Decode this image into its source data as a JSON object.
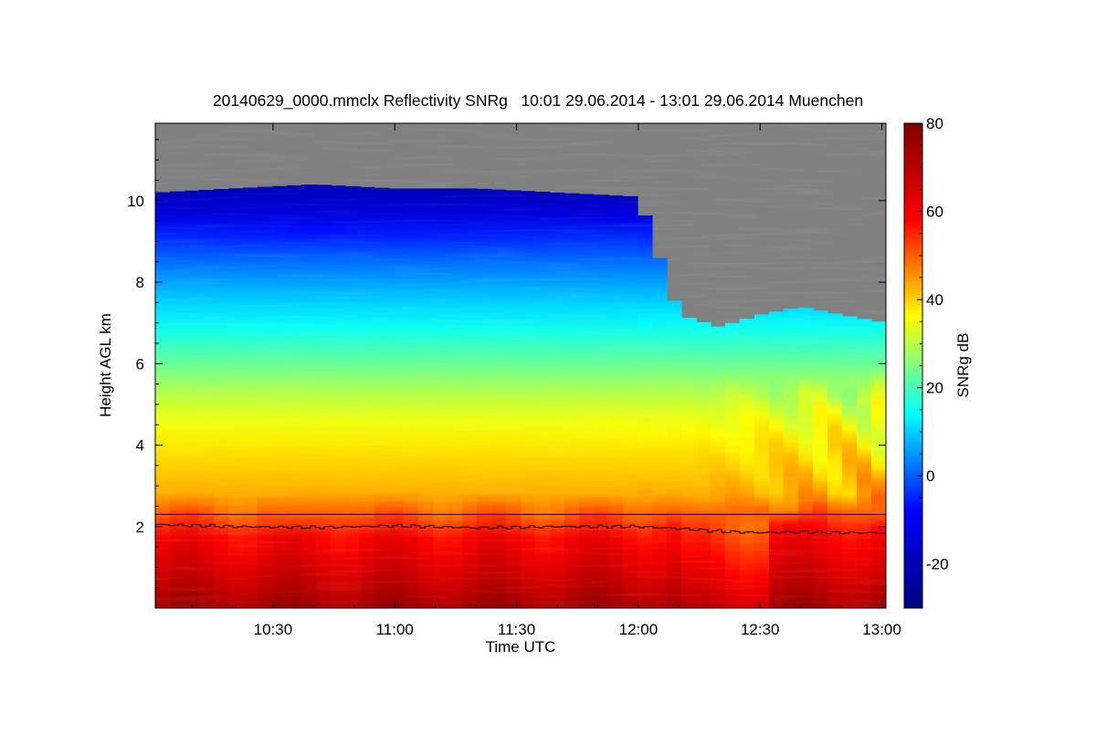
{
  "chart_data": {
    "type": "heatmap",
    "title": "20140629_0000.mmclx Reflectivity SNRg   10:01 29.06.2014 - 13:01 29.06.2014 Muenchen",
    "xlabel": "Time UTC",
    "ylabel": "Height AGL km",
    "colorbar_label": "SNRg dB",
    "x_range": [
      "10:01",
      "13:01"
    ],
    "y_range_km": [
      0,
      11.9
    ],
    "x_ticks": [
      "10:30",
      "11:00",
      "11:30",
      "12:00",
      "12:30",
      "13:00"
    ],
    "y_ticks": [
      2,
      4,
      6,
      8,
      10
    ],
    "colorbar_range": [
      -30,
      80
    ],
    "colorbar_ticks": [
      -20,
      0,
      20,
      40,
      60,
      80
    ],
    "colormap": [
      "#00007f",
      "#0000ff",
      "#00ffff",
      "#ffff00",
      "#ff0000",
      "#7f0000"
    ],
    "no_data_color": "#808080",
    "reference_line_km": 2.3,
    "profile": {
      "time": [
        "10:01",
        "10:20",
        "10:40",
        "11:00",
        "11:20",
        "11:40",
        "12:00",
        "12:10",
        "12:20",
        "12:30",
        "12:40",
        "12:50",
        "13:01"
      ],
      "cloud_top_km": [
        10.2,
        10.3,
        10.4,
        10.3,
        10.3,
        10.2,
        10.1,
        7.2,
        6.9,
        7.2,
        7.4,
        7.2,
        7.0
      ],
      "boundary_km": [
        2.05,
        2.0,
        1.98,
        2.02,
        1.97,
        2.0,
        2.0,
        1.95,
        1.88,
        1.85,
        1.87,
        1.85,
        1.85
      ]
    },
    "snr_profile": {
      "height_km": [
        0,
        0.4,
        0.8,
        1.2,
        1.6,
        2.0,
        2.3,
        2.8,
        3.5,
        4.2,
        5.0,
        6.0,
        7.0,
        8.0,
        9.0,
        9.6,
        10.2
      ],
      "snr_db": [
        74,
        70,
        66,
        63,
        60,
        57,
        50,
        43,
        40,
        37,
        32,
        23,
        14,
        6,
        -3,
        -13,
        -20
      ]
    }
  }
}
